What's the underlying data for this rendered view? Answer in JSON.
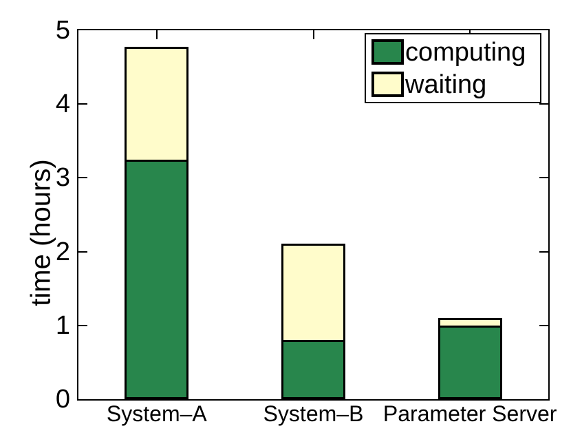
{
  "figure": {
    "background": "#ffffff",
    "axis_color": "#000000"
  },
  "chart_data": {
    "type": "bar",
    "stacked": true,
    "title": "",
    "categories": [
      "System–A",
      "System–B",
      "Parameter Server"
    ],
    "series": [
      {
        "name": "computing",
        "color": "#28864C",
        "values": [
          3.25,
          0.8,
          1.0
        ]
      },
      {
        "name": "waiting",
        "color": "#FFFCCB",
        "values": [
          1.53,
          1.31,
          0.1
        ]
      }
    ],
    "totals": [
      4.78,
      2.11,
      1.1
    ],
    "xlabel": "",
    "ylabel": "time (hours)",
    "ylim": [
      0,
      5
    ],
    "yticks": [
      0,
      1,
      2,
      3,
      4,
      5
    ],
    "grid": false,
    "bar_edge_color": "#000000",
    "legend": {
      "position": "top-right",
      "entries": [
        "computing",
        "waiting"
      ]
    }
  }
}
